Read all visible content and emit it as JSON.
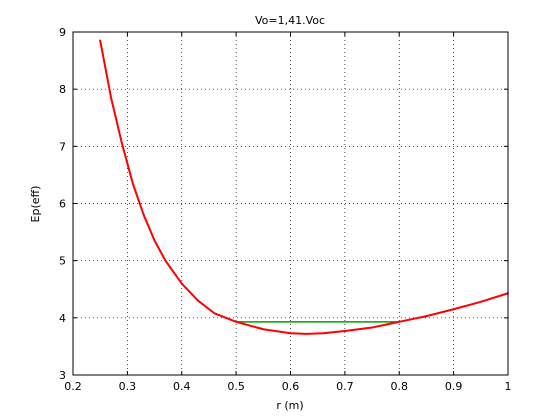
{
  "chart_data": {
    "type": "line",
    "title": "Vo=1,41.Voc",
    "xlabel": "r (m)",
    "ylabel": "Ep(eff)",
    "xlim": [
      0.2,
      1.0
    ],
    "ylim": [
      3,
      9
    ],
    "xticks": [
      "0.2",
      "0.3",
      "0.4",
      "0.5",
      "0.6",
      "0.7",
      "0.8",
      "0.9",
      "1"
    ],
    "yticks": [
      "3",
      "4",
      "5",
      "6",
      "7",
      "8",
      "9"
    ],
    "grid": true,
    "series": [
      {
        "color": "#ff0000",
        "x": [
          0.25,
          0.27,
          0.29,
          0.31,
          0.33,
          0.35,
          0.37,
          0.4,
          0.43,
          0.46,
          0.5,
          0.55,
          0.6,
          0.63,
          0.66,
          0.7,
          0.75,
          0.8,
          0.85,
          0.9,
          0.95,
          1.0
        ],
        "y": [
          8.85,
          7.85,
          7.05,
          6.35,
          5.8,
          5.35,
          5.0,
          4.6,
          4.3,
          4.08,
          3.93,
          3.8,
          3.73,
          3.72,
          3.73,
          3.77,
          3.83,
          3.93,
          4.03,
          4.15,
          4.28,
          4.43
        ]
      },
      {
        "color": "#00a000",
        "x": [
          0.5,
          0.8
        ],
        "y": [
          3.93,
          3.93
        ]
      }
    ]
  }
}
